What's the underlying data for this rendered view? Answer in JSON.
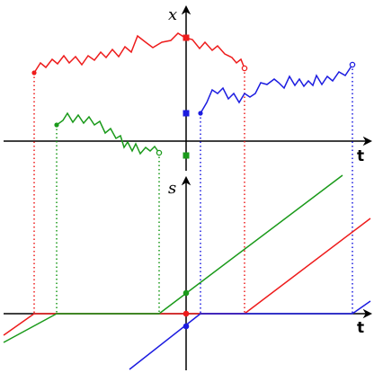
{
  "diagram": {
    "top_axis_label": "x",
    "top_time_label": "t",
    "bottom_axis_label": "s",
    "bottom_time_label": "t"
  },
  "colors": {
    "red": "#ee1c1c",
    "green": "#1a9a1a",
    "blue": "#1c1ce0",
    "axis": "#000000"
  }
}
